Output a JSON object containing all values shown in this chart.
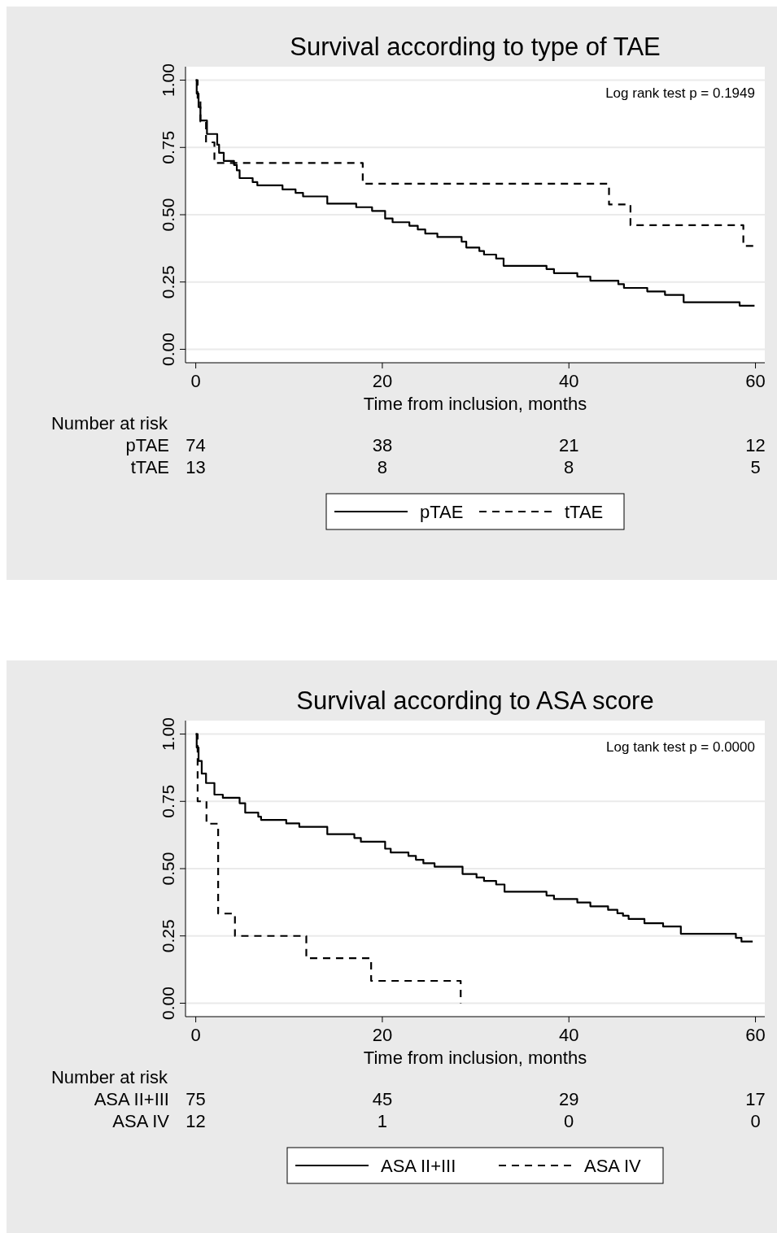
{
  "chart_data": [
    {
      "type": "step",
      "title": "Survival according to type of TAE",
      "xlabel": "Time from inclusion, months",
      "xlim": [
        -1.1,
        61
      ],
      "xticks": [
        0,
        20,
        40,
        60
      ],
      "ylim": [
        -0.05,
        1.05
      ],
      "yticks": [
        {
          "value": 0,
          "label": "0.00"
        },
        {
          "value": 0.25,
          "label": "0.25"
        },
        {
          "value": 0.5,
          "label": "0.50"
        },
        {
          "value": 0.75,
          "label": "0.75"
        },
        {
          "value": 1,
          "label": "1.00"
        }
      ],
      "grid": "y",
      "legend": "bottom",
      "legend_title": "Number at risk",
      "series": [
        {
          "name": "pTAE",
          "color": "#000000",
          "line_style": "solid",
          "x": [
            0,
            0.1,
            0.3,
            0.5,
            1.2,
            2.3,
            2.5,
            3.0,
            4.1,
            4.4,
            4.7,
            6.1,
            6.6,
            9.3,
            10.7,
            11.5,
            14.1,
            17.2,
            18.9,
            20.3,
            21.1,
            22.9,
            23.8,
            24.6,
            25.9,
            28.5,
            29.0,
            30.4,
            30.9,
            32.2,
            33.0,
            37.6,
            38.4,
            40.9,
            42.3,
            45.3,
            45.9,
            48.4,
            50.3,
            52.3,
            58.3,
            59.9
          ],
          "values": [
            1,
            0.95,
            0.9,
            0.85,
            0.8,
            0.76,
            0.73,
            0.7,
            0.685,
            0.665,
            0.636,
            0.621,
            0.609,
            0.594,
            0.581,
            0.568,
            0.541,
            0.528,
            0.514,
            0.486,
            0.472,
            0.459,
            0.445,
            0.43,
            0.417,
            0.4,
            0.378,
            0.365,
            0.352,
            0.337,
            0.31,
            0.298,
            0.283,
            0.27,
            0.255,
            0.242,
            0.228,
            0.215,
            0.202,
            0.175,
            0.162,
            0.162
          ]
        },
        {
          "name": "tTAE",
          "color": "#000000",
          "line_style": "dashed",
          "x": [
            0,
            0.2,
            0.5,
            1.1,
            2.0,
            17.9,
            44.3,
            46.6,
            58.7,
            59.9
          ],
          "values": [
            1,
            0.923,
            0.846,
            0.769,
            0.692,
            0.615,
            0.538,
            0.461,
            0.384,
            0.384
          ]
        }
      ],
      "annotations": [
        "Log rank test p = 0.1949",
        "74",
        "38",
        "21",
        "12",
        "13",
        "8",
        "8",
        "5"
      ]
    },
    {
      "type": "step",
      "title": "Survival according to ASA score",
      "xlabel": "Time from inclusion, months",
      "xlim": [
        -1.1,
        61
      ],
      "xticks": [
        0,
        20,
        40,
        60
      ],
      "ylim": [
        -0.05,
        1.05
      ],
      "yticks": [
        {
          "value": 0,
          "label": "0.00"
        },
        {
          "value": 0.25,
          "label": "0.25"
        },
        {
          "value": 0.5,
          "label": "0.50"
        },
        {
          "value": 0.75,
          "label": "0.75"
        },
        {
          "value": 1,
          "label": "1.00"
        }
      ],
      "grid": "y",
      "legend": "bottom",
      "legend_title": "Number at risk",
      "series": [
        {
          "name": "ASA II+III",
          "color": "#000000",
          "line_style": "solid",
          "x": [
            0,
            0.1,
            0.3,
            0.64,
            1.1,
            2.0,
            2.9,
            4.7,
            5.3,
            6.7,
            7.0,
            9.7,
            11.1,
            14.1,
            17.0,
            17.7,
            20.3,
            20.9,
            22.8,
            23.6,
            24.4,
            25.6,
            28.6,
            30.1,
            30.9,
            32.2,
            33.1,
            37.6,
            38.4,
            40.9,
            42.3,
            44.2,
            45.2,
            45.8,
            46.4,
            48.1,
            50.1,
            52.0,
            57.9,
            58.5,
            59.7
          ],
          "values": [
            1,
            0.95,
            0.9,
            0.853,
            0.818,
            0.775,
            0.763,
            0.743,
            0.708,
            0.693,
            0.681,
            0.668,
            0.655,
            0.628,
            0.614,
            0.6,
            0.574,
            0.56,
            0.547,
            0.533,
            0.52,
            0.507,
            0.48,
            0.467,
            0.454,
            0.441,
            0.414,
            0.4,
            0.387,
            0.374,
            0.36,
            0.347,
            0.334,
            0.325,
            0.313,
            0.297,
            0.285,
            0.258,
            0.243,
            0.229,
            0.229
          ]
        },
        {
          "name": "ASA IV",
          "color": "#000000",
          "line_style": "dashed",
          "x": [
            0,
            0.2,
            1.15,
            2.4,
            4.2,
            11.85,
            18.8,
            28.4
          ],
          "values": [
            1,
            0.75,
            0.667,
            0.333,
            0.25,
            0.167,
            0.083,
            0
          ]
        }
      ],
      "annotations": [
        "Log tank test p = 0.0000",
        "75",
        "45",
        "29",
        "17",
        "12",
        "1",
        "0",
        "0"
      ]
    }
  ]
}
